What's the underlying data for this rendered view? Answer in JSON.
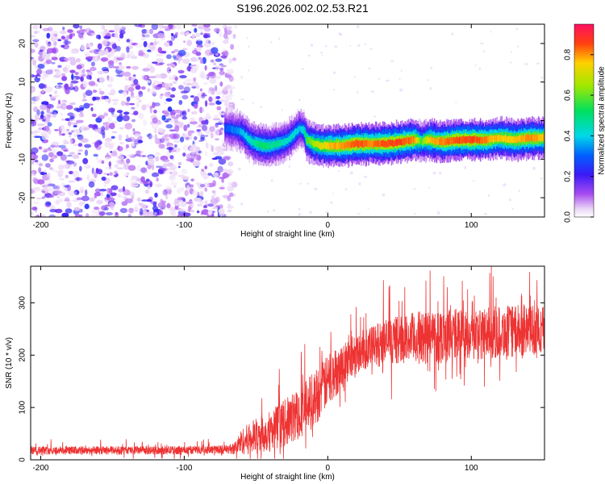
{
  "figure_title": "S196.2026.002.02.53.R21",
  "chart_data": [
    {
      "type": "heatmap",
      "title": "",
      "xlabel": "Height of straight line (km)",
      "ylabel": "Frequency (Hz)",
      "xlim": [
        -207,
        151
      ],
      "ylim": [
        -25,
        25
      ],
      "xticks": [
        -200,
        -100,
        0,
        100
      ],
      "yticks": [
        -20,
        -10,
        0,
        10,
        20
      ],
      "colorbar": {
        "label": "Normalized spectral amplitude",
        "range": [
          0.0,
          0.95
        ],
        "ticks": [
          0.0,
          0.2,
          0.4,
          0.6,
          0.8
        ]
      },
      "noise_region_x": [
        -207,
        -65
      ],
      "track_peak_frequency": {
        "x": [
          -72,
          -65,
          -60,
          -55,
          -50,
          -45,
          -40,
          -35,
          -30,
          -25,
          -20,
          -17,
          -15,
          -10,
          -5,
          0,
          10,
          20,
          30,
          40,
          50,
          60,
          65,
          70,
          80,
          90,
          100,
          110,
          120,
          130,
          140,
          151
        ],
        "freq": [
          -2,
          -2.5,
          -3,
          -5,
          -6,
          -6.5,
          -6.5,
          -6,
          -5.5,
          -4,
          -2,
          -2.5,
          -5,
          -6,
          -6.5,
          -6.5,
          -6.5,
          -6,
          -6,
          -6,
          -5.5,
          -5,
          -5.5,
          -5,
          -5.5,
          -5,
          -5,
          -5,
          -4.5,
          -5,
          -4.5,
          -4.5
        ],
        "amplitude": [
          0.3,
          0.35,
          0.4,
          0.45,
          0.5,
          0.55,
          0.5,
          0.5,
          0.45,
          0.45,
          0.4,
          0.45,
          0.6,
          0.7,
          0.75,
          0.8,
          0.85,
          0.9,
          0.85,
          0.9,
          0.9,
          0.85,
          0.6,
          0.8,
          0.85,
          0.9,
          0.9,
          0.85,
          0.8,
          0.8,
          0.85,
          0.8
        ]
      }
    },
    {
      "type": "line",
      "title": "",
      "xlabel": "Height of straight line (km)",
      "ylabel": "SNR (10 * v/v)",
      "xlim": [
        -207,
        151
      ],
      "ylim": [
        0,
        370
      ],
      "xticks": [
        -200,
        -100,
        0,
        100
      ],
      "yticks": [
        0,
        100,
        200,
        300
      ],
      "color": "#ee3333",
      "series": [
        {
          "name": "SNR",
          "x": [
            -207,
            -180,
            -150,
            -120,
            -90,
            -70,
            -65,
            -60,
            -50,
            -40,
            -30,
            -20,
            -10,
            0,
            10,
            20,
            30,
            40,
            50,
            60,
            70,
            80,
            90,
            100,
            110,
            120,
            130,
            140,
            151
          ],
          "mean": [
            18,
            18,
            18,
            18,
            19,
            20,
            22,
            35,
            45,
            55,
            70,
            90,
            115,
            150,
            180,
            205,
            215,
            225,
            230,
            232,
            235,
            238,
            240,
            240,
            242,
            245,
            245,
            248,
            250
          ],
          "spread": [
            8,
            8,
            8,
            8,
            8,
            8,
            12,
            25,
            35,
            40,
            45,
            50,
            55,
            50,
            45,
            40,
            40,
            45,
            45,
            50,
            55,
            55,
            50,
            50,
            50,
            50,
            50,
            50,
            45
          ]
        }
      ]
    }
  ]
}
